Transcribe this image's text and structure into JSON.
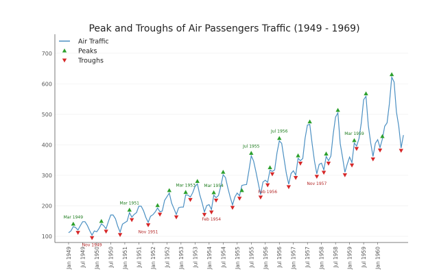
{
  "chart_data": {
    "type": "line",
    "title": "Peak and Troughs of Air Passengers Traffic (1949 - 1969)",
    "xlabel": "",
    "ylabel": "",
    "ylim": [
      80,
      740
    ],
    "grid": true,
    "legend_position": "top-left",
    "legend": [
      {
        "label": "Air Traffic",
        "kind": "line",
        "color": "#4a8fc2"
      },
      {
        "label": "Peaks",
        "kind": "triangle-up",
        "color": "#2ca02c"
      },
      {
        "label": "Troughs",
        "kind": "triangle-down",
        "color": "#d62728"
      }
    ],
    "y_ticks": [
      100,
      200,
      300,
      400,
      500,
      600,
      700
    ],
    "x_tick_labels": [
      "Jan 1949",
      "Jul 1949",
      "Jan 1950",
      "Jul 1950",
      "Jan 1951",
      "Jul 1951",
      "Jan 1952",
      "Jul 1952",
      "Jan 1953",
      "Jul 1953",
      "Jan 1954",
      "Jul 1954",
      "Jan 1955",
      "Jul 1955",
      "Jan 1956",
      "Jul 1956",
      "Jan 1957",
      "Jul 1957",
      "Jan 1958",
      "Jul 1958",
      "Jan 1959",
      "Jul 1959",
      "Jan 1960"
    ],
    "start": "1949-01",
    "frequency": "monthly",
    "series": [
      {
        "name": "Air Traffic",
        "values": [
          112,
          118,
          132,
          129,
          121,
          135,
          148,
          148,
          136,
          119,
          104,
          118,
          115,
          126,
          141,
          135,
          125,
          149,
          170,
          170,
          158,
          133,
          114,
          140,
          145,
          150,
          178,
          163,
          172,
          178,
          199,
          199,
          184,
          162,
          146,
          166,
          171,
          180,
          193,
          181,
          183,
          218,
          230,
          242,
          209,
          191,
          172,
          194,
          196,
          196,
          236,
          235,
          229,
          243,
          264,
          272,
          237,
          211,
          180,
          201,
          204,
          188,
          235,
          227,
          234,
          264,
          302,
          293,
          259,
          229,
          203,
          229,
          242,
          233,
          267,
          269,
          270,
          315,
          364,
          347,
          312,
          274,
          237,
          278,
          284,
          277,
          317,
          313,
          318,
          374,
          413,
          405,
          355,
          306,
          271,
          306,
          315,
          301,
          356,
          348,
          355,
          422,
          465,
          467,
          404,
          347,
          305,
          336,
          340,
          318,
          362,
          348,
          363,
          435,
          491,
          505,
          404,
          359,
          310,
          337,
          360,
          342,
          406,
          396,
          420,
          472,
          548,
          559,
          463,
          407,
          362,
          405,
          417,
          391,
          419,
          461,
          472,
          535,
          622,
          606,
          508,
          461,
          390,
          432
        ]
      }
    ],
    "peaks": [
      {
        "date": "1949-03",
        "value": 132
      },
      {
        "date": "1950-03",
        "value": 141
      },
      {
        "date": "1951-03",
        "value": 178
      },
      {
        "date": "1952-03",
        "value": 193
      },
      {
        "date": "1952-08",
        "value": 242
      },
      {
        "date": "1953-03",
        "value": 236
      },
      {
        "date": "1953-08",
        "value": 272
      },
      {
        "date": "1954-03",
        "value": 235
      },
      {
        "date": "1954-07",
        "value": 302
      },
      {
        "date": "1955-03",
        "value": 242
      },
      {
        "date": "1955-07",
        "value": 364
      },
      {
        "date": "1956-03",
        "value": 317
      },
      {
        "date": "1956-07",
        "value": 413
      },
      {
        "date": "1957-03",
        "value": 356
      },
      {
        "date": "1957-08",
        "value": 467
      },
      {
        "date": "1958-03",
        "value": 362
      },
      {
        "date": "1958-08",
        "value": 505
      },
      {
        "date": "1959-03",
        "value": 406
      },
      {
        "date": "1959-08",
        "value": 559
      },
      {
        "date": "1960-03",
        "value": 419
      },
      {
        "date": "1960-07",
        "value": 622
      }
    ],
    "troughs": [
      {
        "date": "1949-05",
        "value": 121
      },
      {
        "date": "1949-11",
        "value": 104
      },
      {
        "date": "1950-05",
        "value": 125
      },
      {
        "date": "1950-11",
        "value": 114
      },
      {
        "date": "1951-04",
        "value": 163
      },
      {
        "date": "1951-11",
        "value": 146
      },
      {
        "date": "1952-04",
        "value": 181
      },
      {
        "date": "1952-11",
        "value": 172
      },
      {
        "date": "1953-05",
        "value": 229
      },
      {
        "date": "1953-11",
        "value": 180
      },
      {
        "date": "1954-02",
        "value": 188
      },
      {
        "date": "1954-04",
        "value": 227
      },
      {
        "date": "1954-11",
        "value": 203
      },
      {
        "date": "1955-02",
        "value": 233
      },
      {
        "date": "1955-11",
        "value": 237
      },
      {
        "date": "1956-02",
        "value": 277
      },
      {
        "date": "1956-04",
        "value": 313
      },
      {
        "date": "1956-11",
        "value": 271
      },
      {
        "date": "1957-02",
        "value": 301
      },
      {
        "date": "1957-04",
        "value": 348
      },
      {
        "date": "1957-11",
        "value": 305
      },
      {
        "date": "1958-02",
        "value": 318
      },
      {
        "date": "1958-04",
        "value": 348
      },
      {
        "date": "1958-11",
        "value": 310
      },
      {
        "date": "1959-02",
        "value": 342
      },
      {
        "date": "1959-04",
        "value": 396
      },
      {
        "date": "1959-11",
        "value": 362
      },
      {
        "date": "1960-02",
        "value": 391
      },
      {
        "date": "1960-11",
        "value": 390
      }
    ],
    "annotations": [
      {
        "text": "Mar 1949",
        "kind": "peak",
        "date": "1949-03",
        "value": 132
      },
      {
        "text": "Nov 1949",
        "kind": "trough",
        "date": "1949-11",
        "value": 104
      },
      {
        "text": "Mar 1951",
        "kind": "peak",
        "date": "1951-03",
        "value": 178
      },
      {
        "text": "Nov 1951",
        "kind": "trough",
        "date": "1951-11",
        "value": 146
      },
      {
        "text": "Mar 1953",
        "kind": "peak",
        "date": "1953-03",
        "value": 236
      },
      {
        "text": "Mar 1954",
        "kind": "peak",
        "date": "1954-03",
        "value": 235
      },
      {
        "text": "Feb 1954",
        "kind": "trough",
        "date": "1954-02",
        "value": 188
      },
      {
        "text": "Jul 1955",
        "kind": "peak",
        "date": "1955-07",
        "value": 364
      },
      {
        "text": "Feb 1956",
        "kind": "trough",
        "date": "1956-02",
        "value": 277
      },
      {
        "text": "Jul 1956",
        "kind": "peak",
        "date": "1956-07",
        "value": 413
      },
      {
        "text": "Nov 1957",
        "kind": "trough",
        "date": "1957-11",
        "value": 305
      },
      {
        "text": "Mar 1959",
        "kind": "peak",
        "date": "1959-03",
        "value": 406
      }
    ],
    "colors": {
      "line": "#4a8fc2",
      "peak": "#2ca02c",
      "trough": "#d62728",
      "peak_text": "#1a7a1a",
      "trough_text": "#b22222",
      "axis": "#555555",
      "grid": "#eeeeee"
    }
  }
}
